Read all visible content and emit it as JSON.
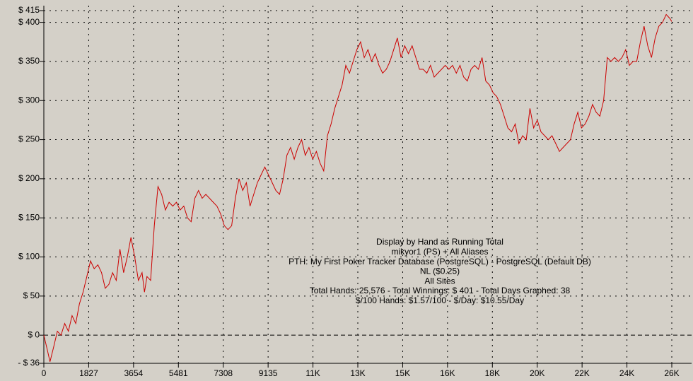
{
  "chart_data": {
    "type": "line",
    "color": "#cc0000",
    "grid": true,
    "annotations": [
      "Display by Hand as Running Total",
      "mikyor1 (PS) + All Aliases",
      "PTH: My First Poker Tracker Database (PostgreSQL) - PostgreSQL (Default DB)",
      "NL ($0.25)",
      "All Sites",
      "Total Hands: 25,576 - Total Winnings: $ 401 - Total Days Graphed: 38",
      "$/100 Hands: $1.57/100 - $/Day: $10.55/Day"
    ],
    "xlim": [
      0,
      25578
    ],
    "ylim": [
      -36,
      415
    ],
    "xticks": [
      0,
      1827,
      3654,
      5481,
      7308,
      9135,
      {
        "value": 10962,
        "label": "11K"
      },
      {
        "value": 12789,
        "label": "13K"
      },
      {
        "value": 14616,
        "label": "15K"
      },
      {
        "value": 16443,
        "label": "16K"
      },
      {
        "value": 18270,
        "label": "18K"
      },
      {
        "value": 20097,
        "label": "20K"
      },
      {
        "value": 21924,
        "label": "22K"
      },
      {
        "value": 23751,
        "label": "24K"
      },
      {
        "value": 25578,
        "label": "26K"
      }
    ],
    "yticks": [
      {
        "value": -36,
        "label": "- $ 36"
      },
      {
        "value": 0,
        "label": "$ 0"
      },
      {
        "value": 50,
        "label": "$ 50"
      },
      {
        "value": 100,
        "label": "$ 100"
      },
      {
        "value": 150,
        "label": "$ 150"
      },
      {
        "value": 200,
        "label": "$ 200"
      },
      {
        "value": 250,
        "label": "$ 250"
      },
      {
        "value": 300,
        "label": "$ 300"
      },
      {
        "value": 350,
        "label": "$ 350"
      },
      {
        "value": 400,
        "label": "$ 400"
      },
      {
        "value": 415,
        "label": "$ 415"
      }
    ],
    "x": [
      0,
      150,
      250,
      400,
      550,
      700,
      850,
      1000,
      1150,
      1300,
      1450,
      1600,
      1750,
      1900,
      2050,
      2200,
      2350,
      2500,
      2650,
      2800,
      2950,
      3100,
      3250,
      3400,
      3550,
      3700,
      3850,
      4000,
      4100,
      4200,
      4350,
      4500,
      4650,
      4800,
      4950,
      5100,
      5250,
      5400,
      5550,
      5700,
      5850,
      6000,
      6150,
      6300,
      6450,
      6600,
      6750,
      6900,
      7050,
      7200,
      7350,
      7500,
      7650,
      7800,
      7950,
      8100,
      8250,
      8400,
      8550,
      8700,
      8850,
      9000,
      9150,
      9300,
      9450,
      9600,
      9750,
      9900,
      10050,
      10200,
      10350,
      10500,
      10650,
      10800,
      10950,
      11100,
      11250,
      11400,
      11550,
      11700,
      11850,
      12000,
      12150,
      12300,
      12450,
      12600,
      12750,
      12900,
      13050,
      13200,
      13350,
      13500,
      13650,
      13800,
      13950,
      14100,
      14250,
      14400,
      14550,
      14700,
      14850,
      15000,
      15150,
      15300,
      15450,
      15600,
      15750,
      15900,
      16050,
      16200,
      16350,
      16500,
      16650,
      16800,
      16950,
      17100,
      17250,
      17400,
      17550,
      17700,
      17850,
      18000,
      18150,
      18300,
      18450,
      18600,
      18750,
      18900,
      19050,
      19200,
      19350,
      19500,
      19650,
      19800,
      19950,
      20100,
      20250,
      20400,
      20550,
      20700,
      20850,
      21000,
      21150,
      21300,
      21450,
      21600,
      21750,
      21900,
      22050,
      22200,
      22350,
      22500,
      22650,
      22800,
      22950,
      23100,
      23250,
      23400,
      23550,
      23700,
      23850,
      24000,
      24150,
      24300,
      24450,
      24600,
      24750,
      24900,
      25050,
      25200,
      25350,
      25500,
      25576
    ],
    "values": [
      0,
      -20,
      -34,
      -15,
      5,
      0,
      15,
      5,
      25,
      15,
      40,
      55,
      75,
      95,
      85,
      90,
      80,
      60,
      65,
      80,
      70,
      110,
      80,
      100,
      125,
      100,
      70,
      80,
      55,
      75,
      70,
      140,
      190,
      180,
      160,
      170,
      165,
      170,
      160,
      165,
      150,
      145,
      175,
      185,
      175,
      180,
      175,
      170,
      165,
      155,
      140,
      135,
      140,
      175,
      200,
      185,
      195,
      165,
      180,
      195,
      205,
      215,
      205,
      195,
      185,
      180,
      200,
      230,
      240,
      225,
      240,
      250,
      230,
      240,
      225,
      235,
      220,
      210,
      255,
      270,
      290,
      305,
      320,
      345,
      335,
      350,
      365,
      375,
      355,
      365,
      350,
      360,
      345,
      335,
      340,
      350,
      365,
      380,
      355,
      370,
      360,
      370,
      355,
      340,
      340,
      335,
      345,
      330,
      335,
      340,
      345,
      340,
      345,
      335,
      345,
      330,
      325,
      340,
      345,
      340,
      355,
      325,
      320,
      310,
      305,
      295,
      280,
      265,
      260,
      270,
      245,
      255,
      250,
      290,
      265,
      275,
      260,
      255,
      250,
      255,
      245,
      235,
      240,
      245,
      250,
      270,
      285,
      265,
      270,
      280,
      295,
      285,
      280,
      300,
      355,
      350,
      355,
      350,
      355,
      365,
      345,
      350,
      350,
      375,
      395,
      370,
      355,
      380,
      395,
      400,
      410,
      405,
      401
    ]
  }
}
